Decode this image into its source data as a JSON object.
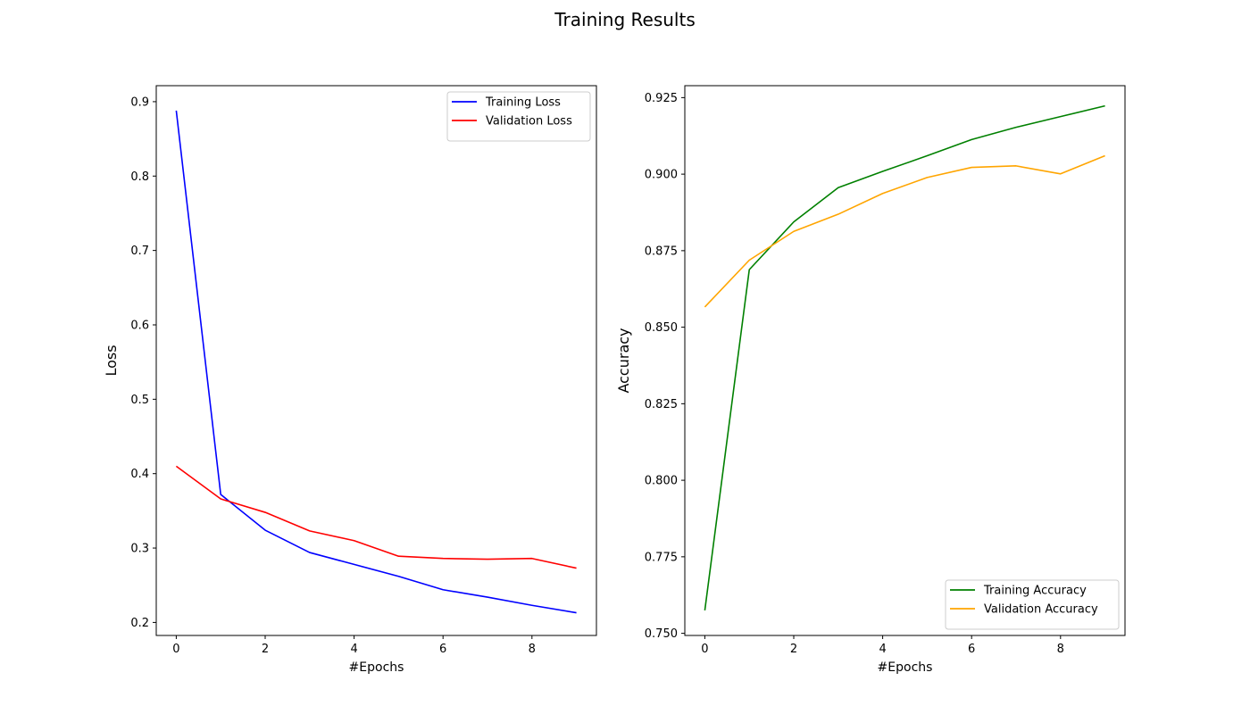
{
  "figure": {
    "title": "Training Results"
  },
  "chart_data": [
    {
      "type": "line",
      "title": "",
      "xlabel": "#Epochs",
      "ylabel": "Loss",
      "xlim": [
        -0.45,
        9.45
      ],
      "ylim": [
        0.1825,
        0.9215
      ],
      "xticks": [
        0,
        2,
        4,
        6,
        8
      ],
      "xtick_labels": [
        "0",
        "2",
        "4",
        "6",
        "8"
      ],
      "yticks": [
        0.2,
        0.3,
        0.4,
        0.5,
        0.6,
        0.7,
        0.8,
        0.9
      ],
      "ytick_labels": [
        "0.2",
        "0.3",
        "0.4",
        "0.5",
        "0.6",
        "0.7",
        "0.8",
        "0.9"
      ],
      "grid": false,
      "legend_position": "top-right",
      "x": [
        0,
        1,
        2,
        3,
        4,
        5,
        6,
        7,
        8,
        9
      ],
      "series": [
        {
          "name": "Training Loss",
          "color": "#0000ff",
          "values": [
            0.888,
            0.372,
            0.324,
            0.294,
            0.278,
            0.262,
            0.244,
            0.234,
            0.223,
            0.213
          ]
        },
        {
          "name": "Validation Loss",
          "color": "#ff0000",
          "values": [
            0.41,
            0.366,
            0.348,
            0.323,
            0.31,
            0.289,
            0.286,
            0.285,
            0.286,
            0.273
          ]
        }
      ]
    },
    {
      "type": "line",
      "title": "",
      "xlabel": "#Epochs",
      "ylabel": "Accuracy",
      "xlim": [
        -0.45,
        9.45
      ],
      "ylim": [
        0.7493,
        0.9289
      ],
      "xticks": [
        0,
        2,
        4,
        6,
        8
      ],
      "xtick_labels": [
        "0",
        "2",
        "4",
        "6",
        "8"
      ],
      "yticks": [
        0.75,
        0.775,
        0.8,
        0.825,
        0.85,
        0.875,
        0.9,
        0.925
      ],
      "ytick_labels": [
        "0.750",
        "0.775",
        "0.800",
        "0.825",
        "0.850",
        "0.875",
        "0.900",
        "0.925"
      ],
      "grid": false,
      "legend_position": "bottom-right",
      "x": [
        0,
        1,
        2,
        3,
        4,
        5,
        6,
        7,
        8,
        9
      ],
      "series": [
        {
          "name": "Training Accuracy",
          "color": "#008000",
          "values": [
            0.7575,
            0.8688,
            0.8844,
            0.8956,
            0.9009,
            0.906,
            0.9113,
            0.9153,
            0.9188,
            0.9223
          ]
        },
        {
          "name": "Validation Accuracy",
          "color": "#ffa500",
          "values": [
            0.8566,
            0.8719,
            0.8813,
            0.8869,
            0.8937,
            0.8989,
            0.9022,
            0.9027,
            0.9001,
            0.906
          ]
        }
      ]
    }
  ]
}
